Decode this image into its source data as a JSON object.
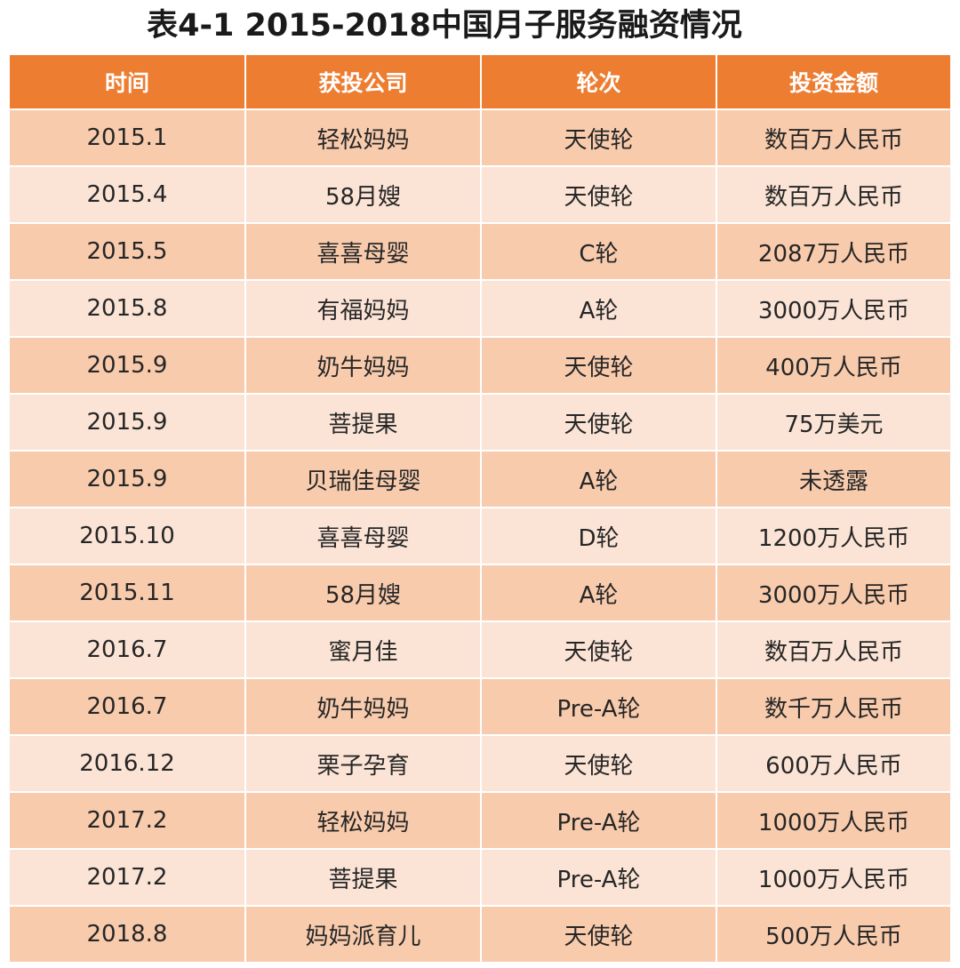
{
  "title": "表4-1 2015-2018中国月子服务融资情况",
  "table": {
    "headers": [
      "时间",
      "获投公司",
      "轮次",
      "投资金额"
    ],
    "rows": [
      [
        "2015.1",
        "轻松妈妈",
        "天使轮",
        "数百万人民币"
      ],
      [
        "2015.4",
        "58月嫂",
        "天使轮",
        "数百万人民币"
      ],
      [
        "2015.5",
        "喜喜母婴",
        "C轮",
        "2087万人民币"
      ],
      [
        "2015.8",
        "有福妈妈",
        "A轮",
        "3000万人民币"
      ],
      [
        "2015.9",
        "奶牛妈妈",
        "天使轮",
        "400万人民币"
      ],
      [
        "2015.9",
        "菩提果",
        "天使轮",
        "75万美元"
      ],
      [
        "2015.9",
        "贝瑞佳母婴",
        "A轮",
        "未透露"
      ],
      [
        "2015.10",
        "喜喜母婴",
        "D轮",
        "1200万人民币"
      ],
      [
        "2015.11",
        "58月嫂",
        "A轮",
        "3000万人民币"
      ],
      [
        "2016.7",
        "蜜月佳",
        "天使轮",
        "数百万人民币"
      ],
      [
        "2016.7",
        "奶牛妈妈",
        "Pre-A轮",
        "数千万人民币"
      ],
      [
        "2016.12",
        "栗子孕育",
        "天使轮",
        "600万人民币"
      ],
      [
        "2017.2",
        "轻松妈妈",
        "Pre-A轮",
        "1000万人民币"
      ],
      [
        "2017.2",
        "菩提果",
        "Pre-A轮",
        "1000万人民币"
      ],
      [
        "2018.8",
        "妈妈派育儿",
        "天使轮",
        "500万人民币"
      ]
    ]
  },
  "colors": {
    "header_bg": "#ed7d31",
    "row_odd_bg": "#f8cbad",
    "row_even_bg": "#fbe4d6"
  }
}
